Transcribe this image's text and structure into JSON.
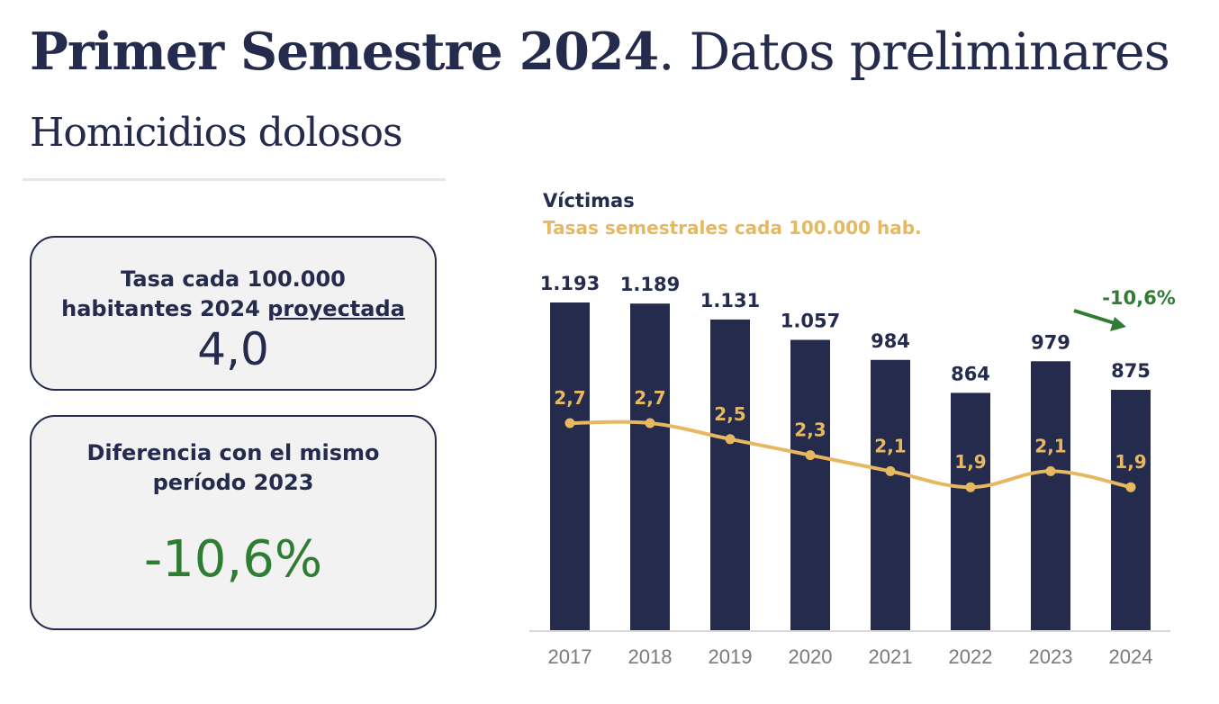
{
  "header": {
    "title_bold": "Primer Semestre 2024",
    "title_rest": ". Datos preliminares",
    "subtitle": "Homicidios dolosos"
  },
  "cards": {
    "rate": {
      "label_line1": "Tasa cada 100.000",
      "label_line2_plain": "habitantes 2024",
      "label_line2_underlined": "proyectada",
      "value": "4,0"
    },
    "diff": {
      "label_line1": "Diferencia con el mismo",
      "label_line2": "período 2023",
      "value": "-10,6%"
    }
  },
  "legend": {
    "series1": "Víctimas",
    "series2": "Tasas semestrales cada 100.000 hab."
  },
  "colors": {
    "bars": "#242b4c",
    "rate_line": "#e6b860",
    "positive_change": "#2e7d32",
    "card_bg": "#f2f2f3"
  },
  "chart_data": {
    "type": "bar",
    "categories": [
      "2017",
      "2018",
      "2019",
      "2020",
      "2021",
      "2022",
      "2023",
      "2024"
    ],
    "series": [
      {
        "name": "Víctimas",
        "type": "bar",
        "values": [
          1193,
          1189,
          1131,
          1057,
          984,
          864,
          979,
          875
        ],
        "labels": [
          "1.193",
          "1.189",
          "1.131",
          "1.057",
          "984",
          "864",
          "979",
          "875"
        ]
      },
      {
        "name": "Tasas semestrales cada 100.000 hab.",
        "type": "line",
        "values": [
          2.7,
          2.7,
          2.5,
          2.3,
          2.1,
          1.9,
          2.1,
          1.9
        ],
        "labels": [
          "2,7",
          "2,7",
          "2,5",
          "2,3",
          "2,1",
          "1,9",
          "2,1",
          "1,9"
        ]
      }
    ],
    "annotation": {
      "text": "-10,6%",
      "from": "2023",
      "to": "2024"
    },
    "ylim": [
      0,
      1193
    ],
    "grid": false,
    "legend_position": "top-left"
  }
}
